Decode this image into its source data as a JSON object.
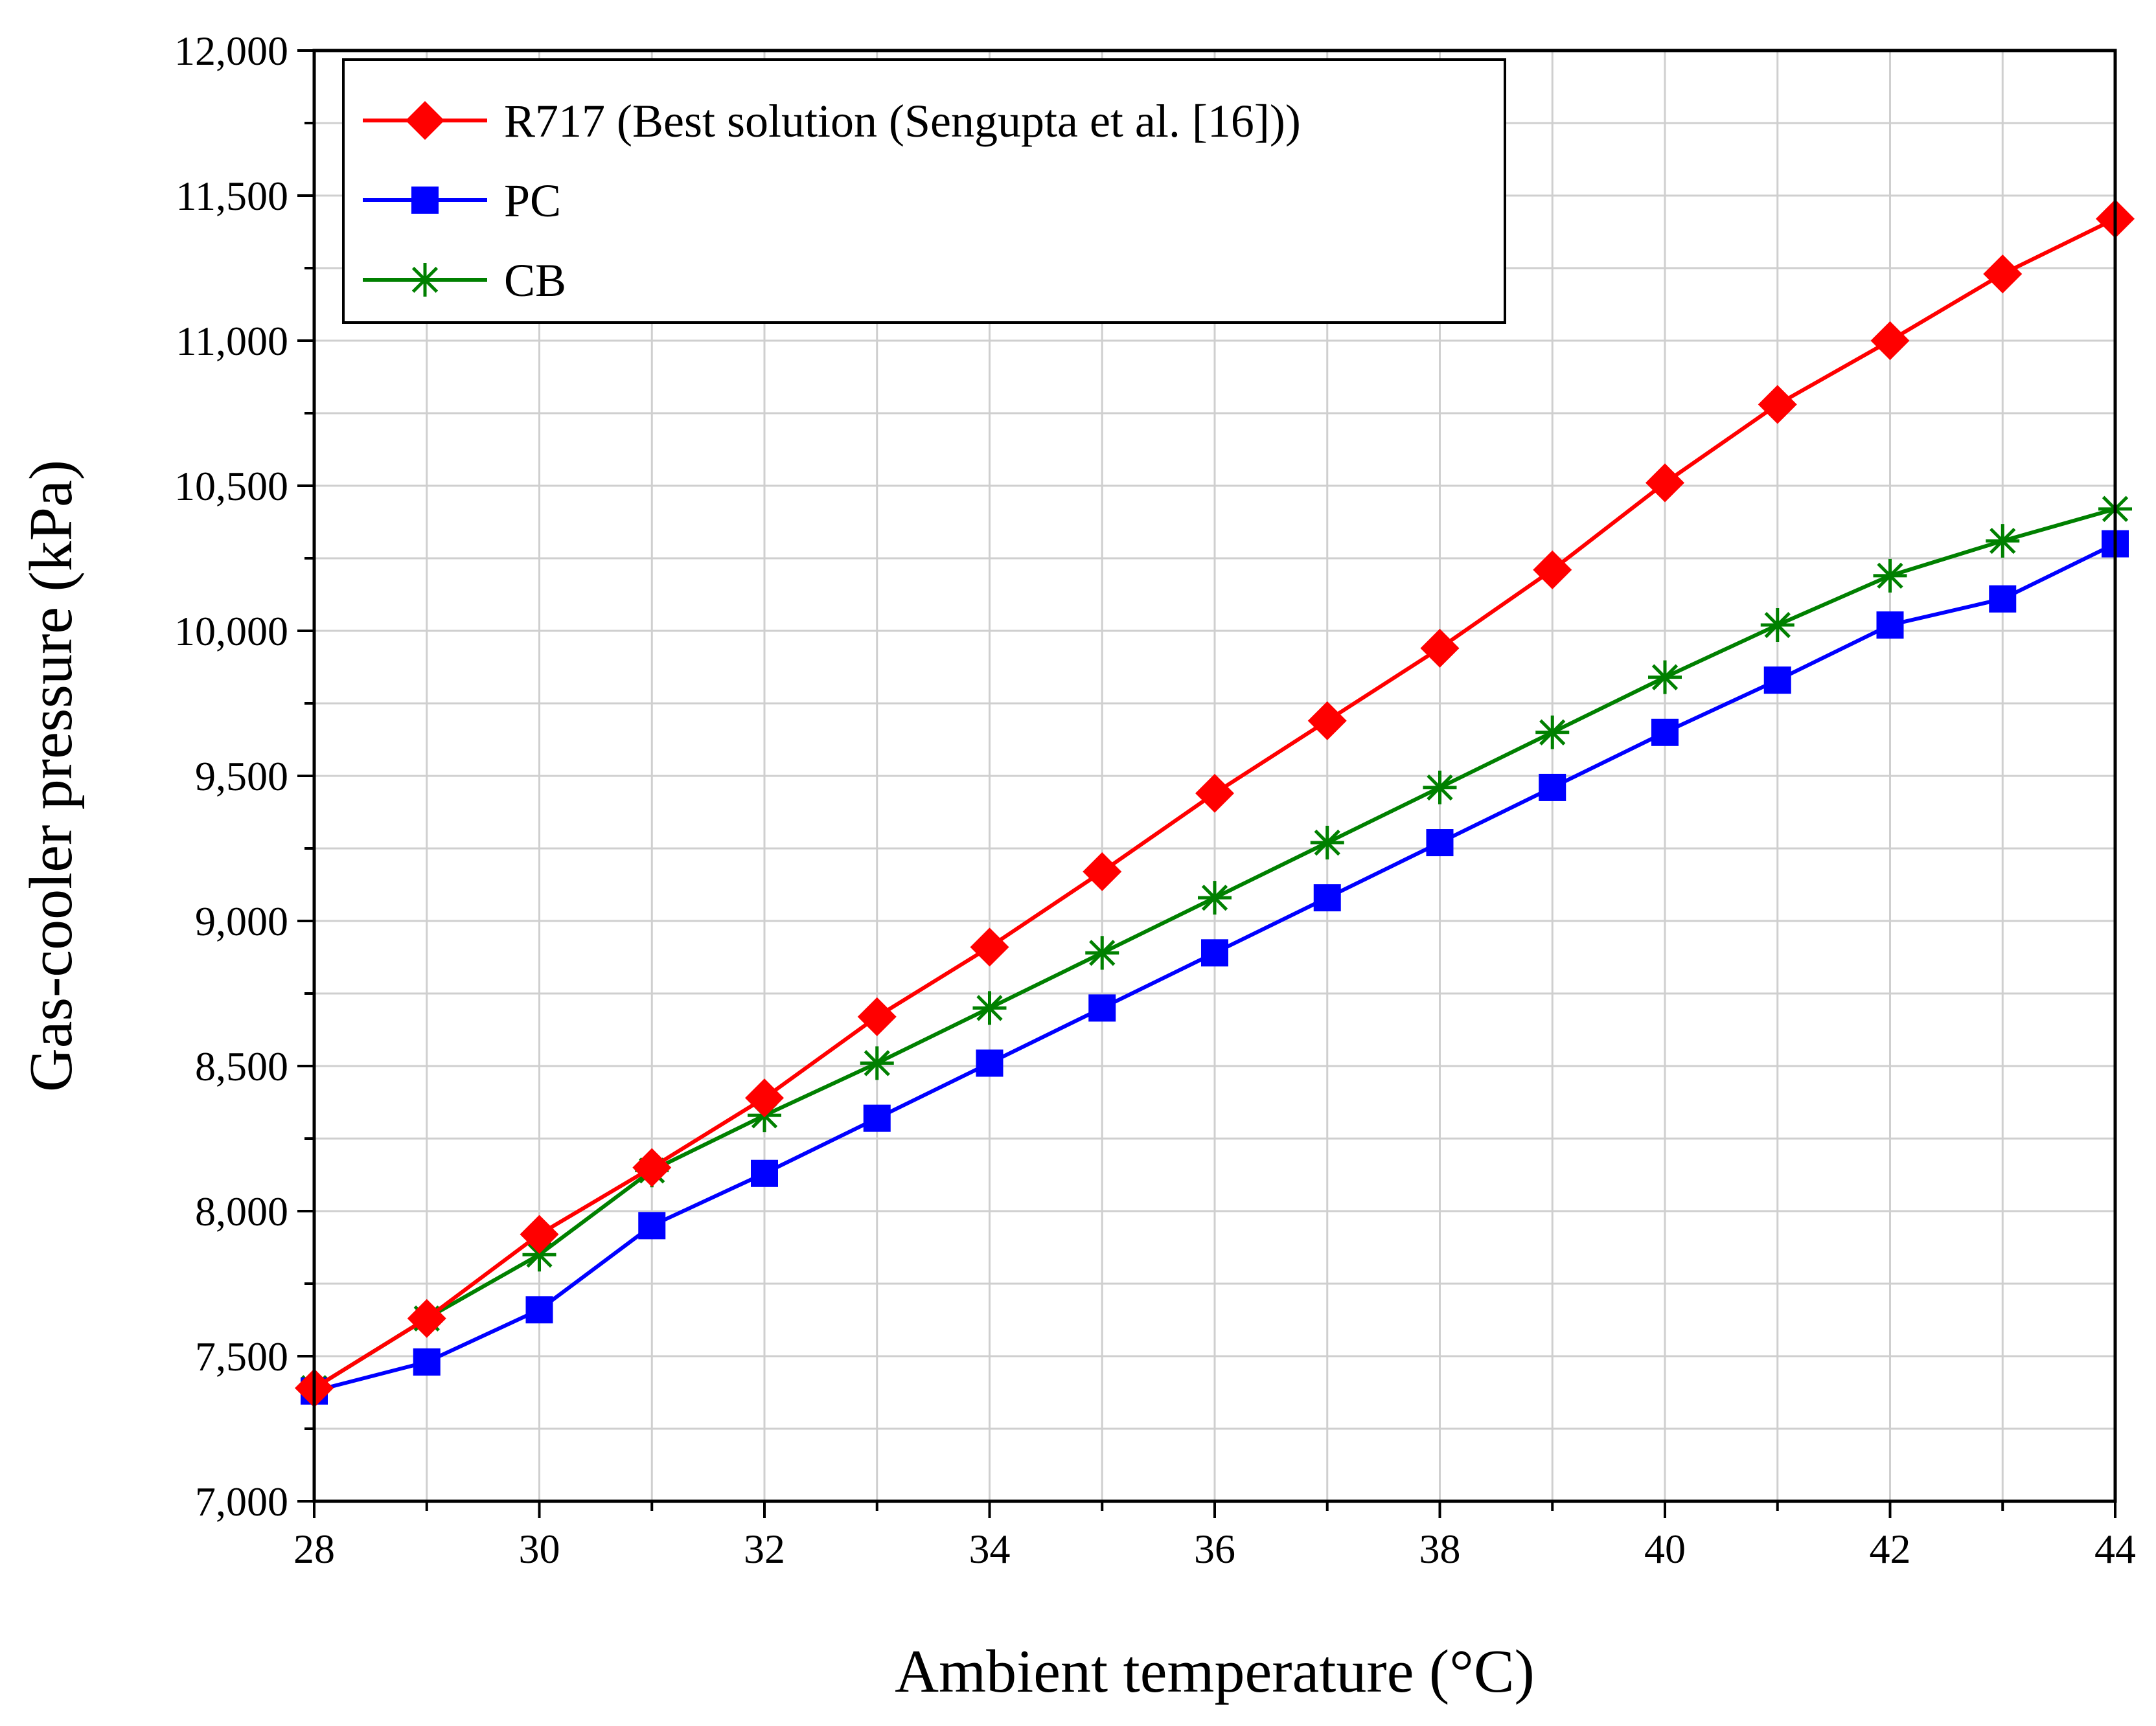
{
  "chart_data": {
    "type": "line",
    "title": "",
    "xlabel": "Ambient temperature (°C)",
    "ylabel": "Gas-cooler pressure (kPa)",
    "xlim": [
      28,
      44
    ],
    "ylim": [
      7000,
      12000
    ],
    "grid": true,
    "legend_position": "top-left",
    "x": [
      28,
      29,
      30,
      31,
      32,
      33,
      34,
      35,
      36,
      37,
      38,
      39,
      40,
      41,
      42,
      43,
      44
    ],
    "x_ticks": [
      "28",
      "30",
      "32",
      "34",
      "36",
      "38",
      "40",
      "42",
      "44"
    ],
    "y_ticks": [
      "7,000",
      "7,500",
      "8,000",
      "8,500",
      "9,000",
      "9,500",
      "10,000",
      "10,500",
      "11,000",
      "11,500",
      "12,000"
    ],
    "series": [
      {
        "name": "R717 (Best solution (Sengupta et al. [16]))",
        "color": "#ff0000",
        "marker": "diamond",
        "values": [
          7390,
          7630,
          7920,
          8150,
          8390,
          8670,
          8910,
          9170,
          9440,
          9690,
          9940,
          10210,
          10510,
          10780,
          11000,
          11230,
          11420
        ]
      },
      {
        "name": "PC",
        "color": "#0000ff",
        "marker": "square",
        "values": [
          7380,
          7480,
          7660,
          7950,
          8130,
          8320,
          8510,
          8700,
          8890,
          9080,
          9270,
          9460,
          9650,
          9830,
          10020,
          10110,
          10300
        ]
      },
      {
        "name": "CB",
        "color": "#008000",
        "marker": "star",
        "values": [
          7390,
          7630,
          7850,
          8140,
          8330,
          8510,
          8700,
          8890,
          9080,
          9270,
          9460,
          9650,
          9840,
          10020,
          10190,
          10310,
          10420
        ]
      }
    ]
  }
}
